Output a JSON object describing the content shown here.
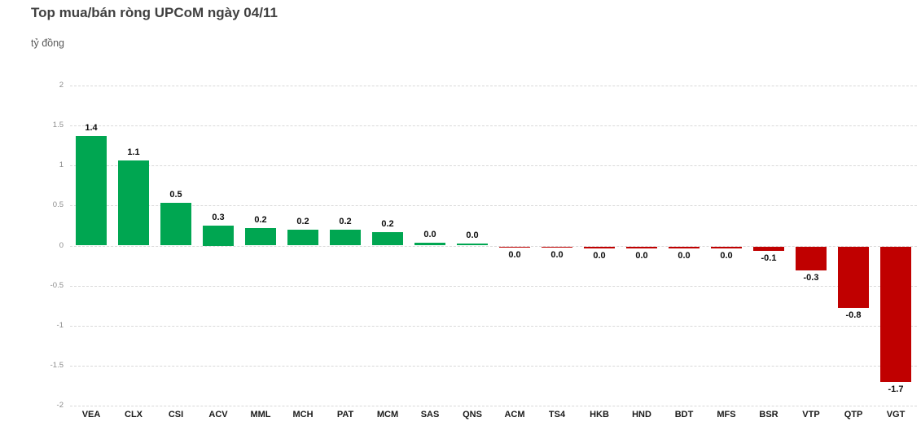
{
  "header": {
    "title": "Top mua/bán ròng UPCoM ngày 04/11",
    "unit_label": "tỷ đồng"
  },
  "chart_data": {
    "type": "bar",
    "title": "Top mua/bán ròng UPCoM ngày 04/11",
    "ylabel": "tỷ đồng",
    "categories": [
      "VEA",
      "CLX",
      "CSI",
      "ACV",
      "MML",
      "MCH",
      "PAT",
      "MCM",
      "SAS",
      "QNS",
      "ACM",
      "TS4",
      "HKB",
      "HND",
      "BDT",
      "MFS",
      "BSR",
      "VTP",
      "QTP",
      "VGT"
    ],
    "values": [
      1.4,
      1.1,
      0.5,
      0.3,
      0.2,
      0.2,
      0.2,
      0.2,
      0.0,
      0.0,
      0.0,
      0.0,
      0.0,
      0.0,
      0.0,
      0.0,
      -0.1,
      -0.3,
      -0.8,
      -1.7
    ],
    "value_labels": [
      "1.4",
      "1.1",
      "0.5",
      "0.3",
      "0.2",
      "0.2",
      "0.2",
      "0.2",
      "0.0",
      "0.0",
      "0.0",
      "0.0",
      "0.0",
      "0.0",
      "0.0",
      "0.0",
      "-0.1",
      "-0.3",
      "-0.8",
      "-1.7"
    ],
    "bar_heights": [
      1.37,
      1.06,
      0.53,
      0.25,
      0.22,
      0.2,
      0.2,
      0.17,
      0.04,
      0.03,
      -0.01,
      -0.01,
      -0.03,
      -0.03,
      -0.03,
      -0.03,
      -0.06,
      -0.3,
      -0.77,
      -1.69
    ],
    "ylim": [
      -2,
      2
    ],
    "ytick_step": 0.5,
    "ytick_labels": [
      "2",
      "1.5",
      "1",
      "0.5",
      "0",
      "-0.5",
      "-1",
      "-1.5",
      "-2"
    ],
    "grid": true,
    "legend": false,
    "positive_color": "#00A651",
    "negative_color": "#C00000"
  }
}
